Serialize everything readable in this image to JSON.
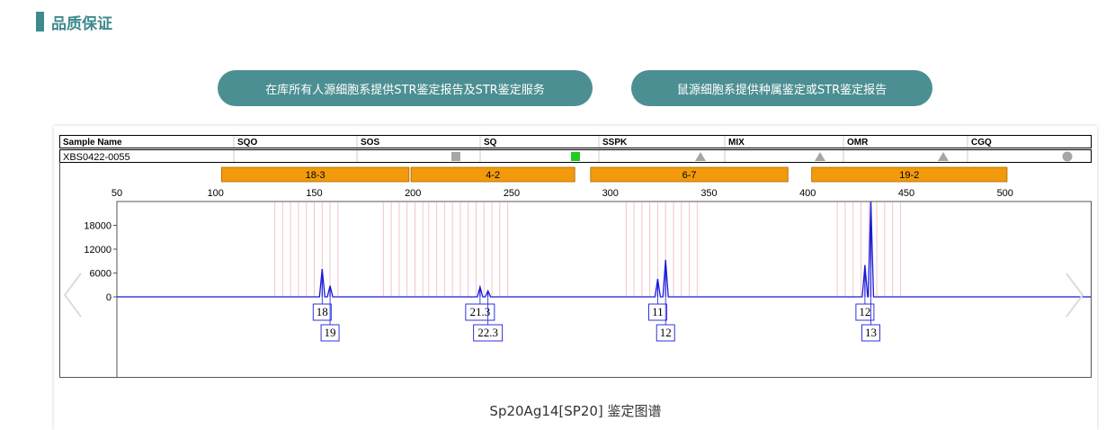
{
  "section": {
    "title": "品质保证"
  },
  "buttons": {
    "human": "在库所有人源细胞系提供STR鉴定报告及STR鉴定服务",
    "mouse": "鼠源细胞系提供种属鉴定或STR鉴定报告"
  },
  "species_table": {
    "headers": [
      "Sample Name",
      "SQO",
      "SOS",
      "SQ",
      "SSPK",
      "MIX",
      "OMR",
      "CGQ"
    ],
    "sample": "XBS0422-0055",
    "markers": [
      {
        "column": "SOS",
        "shape": "square",
        "color": "#a6a6a6"
      },
      {
        "column": "SQ",
        "shape": "square",
        "color": "#22c922"
      },
      {
        "column": "SSPK",
        "shape": "triangle",
        "color": "#a6a6a6"
      },
      {
        "column": "MIX",
        "shape": "triangle",
        "color": "#a6a6a6"
      },
      {
        "column": "OMR",
        "shape": "triangle",
        "color": "#a6a6a6"
      },
      {
        "column": "CGQ",
        "shape": "circle",
        "color": "#a6a6a6"
      }
    ]
  },
  "chart_data": {
    "type": "line",
    "x_ticks": [
      50,
      100,
      150,
      200,
      250,
      300,
      350,
      400,
      450,
      500
    ],
    "y_ticks": [
      0,
      6000,
      12000,
      18000
    ],
    "xlim": [
      50,
      540
    ],
    "ylim": [
      0,
      24000
    ],
    "line_color": "#1a1adb",
    "bin_color": "#f2c6c6",
    "bar_color": "#f29a0c",
    "loci": [
      {
        "label": "18-3",
        "range": [
          103,
          198
        ]
      },
      {
        "label": "4-2",
        "range": [
          199,
          282
        ]
      },
      {
        "label": "6-7",
        "range": [
          290,
          390
        ]
      },
      {
        "label": "19-2",
        "range": [
          402,
          501
        ]
      }
    ],
    "peaks": [
      {
        "x": 154,
        "height": 7000,
        "label": "18",
        "row": 1
      },
      {
        "x": 158,
        "height": 2800,
        "label": "19",
        "row": 2
      },
      {
        "x": 234,
        "height": 2500,
        "label": "21.3",
        "row": 1
      },
      {
        "x": 238,
        "height": 1500,
        "label": "22.3",
        "row": 2
      },
      {
        "x": 324,
        "height": 4500,
        "label": "11",
        "row": 1
      },
      {
        "x": 328,
        "height": 9300,
        "label": "12",
        "row": 2
      },
      {
        "x": 429,
        "height": 8000,
        "label": "12",
        "row": 1
      },
      {
        "x": 432,
        "height": 24000,
        "label": "13",
        "row": 2
      }
    ],
    "bins": [
      {
        "from": 130,
        "to": 164,
        "step": 4
      },
      {
        "from": 185,
        "to": 208,
        "step": 4
      },
      {
        "from": 208,
        "to": 248,
        "step": 4
      },
      {
        "from": 308,
        "to": 345,
        "step": 4
      },
      {
        "from": 415,
        "to": 450,
        "step": 4
      }
    ]
  },
  "caption": "Sp20Ag14[SP20] 鉴定图谱"
}
